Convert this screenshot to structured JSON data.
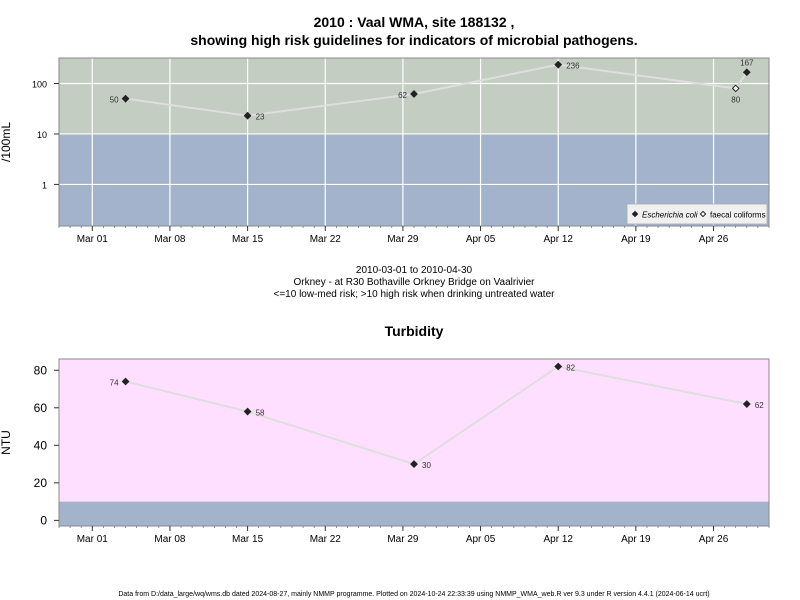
{
  "page": {
    "title_line1": "2010 : Vaal WMA, site 188132 ,",
    "title_line2": "showing high risk guidelines for indicators of microbial pathogens.",
    "caption_line1": "2010-03-01 to 2010-04-30",
    "caption_line2": "Orkney - at R30 Bothaville Orkney Bridge on Vaalrivier",
    "caption_line3": "<=10 low-med risk; >10 high risk when drinking untreated water",
    "footer": "Data from D:/data_large/wq/wms.db dated 2024-08-27, mainly NMMP programme. Plotted on 2024-10-24 22:33:39 using NMMP_WMA_web.R ver 9.3 under R version 4.4.1 (2024-06-14 ucrt)"
  },
  "chart_data": [
    {
      "type": "line",
      "title": "",
      "ylabel": "/100mL",
      "xlabel": "",
      "y_scale": "log",
      "ylim": [
        0.15,
        320
      ],
      "xlim": [
        "2010-02-26",
        "2010-05-01"
      ],
      "x_ticks": [
        "Mar 01",
        "Mar 08",
        "Mar 15",
        "Mar 22",
        "Mar 29",
        "Apr 05",
        "Apr 12",
        "Apr 19",
        "Apr 26"
      ],
      "x_tick_dates": [
        "2010-03-01",
        "2010-03-08",
        "2010-03-15",
        "2010-03-22",
        "2010-03-29",
        "2010-04-05",
        "2010-04-12",
        "2010-04-19",
        "2010-04-26"
      ],
      "y_ticks": [
        "1",
        "10",
        "100"
      ],
      "y_tick_values": [
        1,
        10,
        100
      ],
      "grid": true,
      "risk_threshold": 10,
      "colors": {
        "high_risk_band": "#c3cdc1",
        "low_risk_band": "#a2b3cb",
        "line": "#dedede",
        "grid": "#ffffff",
        "marker": "#222222"
      },
      "legend_position": "bottom-right",
      "legend": [
        {
          "label": "Escherichia coli",
          "marker": "filled-diamond"
        },
        {
          "label": "faecal coliforms",
          "marker": "open-diamond"
        }
      ],
      "points": [
        {
          "date": "2010-03-04",
          "value": 50,
          "label": "50",
          "series": "Escherichia coli"
        },
        {
          "date": "2010-03-15",
          "value": 23,
          "label": "23",
          "series": "Escherichia coli"
        },
        {
          "date": "2010-03-30",
          "value": 62,
          "label": "62",
          "series": "Escherichia coli"
        },
        {
          "date": "2010-04-12",
          "value": 236,
          "label": "236",
          "series": "Escherichia coli"
        },
        {
          "date": "2010-04-28",
          "value": 80,
          "label": "80",
          "series": "faecal coliforms"
        },
        {
          "date": "2010-04-29",
          "value": 167,
          "label": "167",
          "series": "Escherichia coli"
        }
      ]
    },
    {
      "type": "line",
      "title": "Turbidity",
      "ylabel": "NTU",
      "xlabel": "",
      "y_scale": "linear",
      "ylim": [
        -3,
        86
      ],
      "xlim": [
        "2010-02-26",
        "2010-05-01"
      ],
      "x_ticks": [
        "Mar 01",
        "Mar 08",
        "Mar 15",
        "Mar 22",
        "Mar 29",
        "Apr 05",
        "Apr 12",
        "Apr 19",
        "Apr 26"
      ],
      "x_tick_dates": [
        "2010-03-01",
        "2010-03-08",
        "2010-03-15",
        "2010-03-22",
        "2010-03-29",
        "2010-04-05",
        "2010-04-12",
        "2010-04-19",
        "2010-04-26"
      ],
      "y_ticks": [
        "0",
        "20",
        "40",
        "60",
        "80"
      ],
      "y_tick_values": [
        0,
        20,
        40,
        60,
        80
      ],
      "grid": false,
      "risk_threshold": 10,
      "colors": {
        "high_risk_band": "#ffdfff",
        "low_risk_band": "#a2b3cb",
        "line": "#dedede",
        "marker": "#222222"
      },
      "points": [
        {
          "date": "2010-03-04",
          "value": 74,
          "label": "74"
        },
        {
          "date": "2010-03-15",
          "value": 58,
          "label": "58"
        },
        {
          "date": "2010-03-30",
          "value": 30,
          "label": "30"
        },
        {
          "date": "2010-04-12",
          "value": 82,
          "label": "82"
        },
        {
          "date": "2010-04-29",
          "value": 62,
          "label": "62"
        }
      ]
    }
  ]
}
